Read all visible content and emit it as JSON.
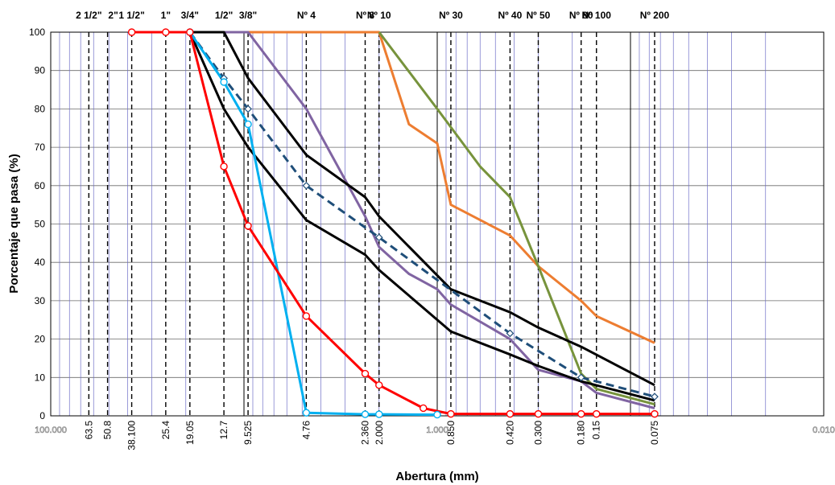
{
  "chart_data": {
    "type": "line",
    "xscale": "log",
    "x_reversed": true,
    "xlim": [
      100,
      0.01
    ],
    "ylim": [
      0,
      100
    ],
    "grid": true,
    "xlabel": "Abertura (mm)",
    "ylabel": "Porcentaje que pasa (%)",
    "y_ticks": [
      "0",
      "10",
      "20",
      "30",
      "40",
      "50",
      "60",
      "70",
      "80",
      "90",
      "100"
    ],
    "x_edge_labels": [
      {
        "value": 100,
        "label": "100.000"
      },
      {
        "value": 1,
        "label": "1.000"
      },
      {
        "value": 0.01,
        "label": "0.010"
      }
    ],
    "sieve_sizes": [
      {
        "mm": 63.5,
        "label": "63.5",
        "sieve": "2 1/2\""
      },
      {
        "mm": 50.8,
        "label": "50.8",
        "sieve": "2\""
      },
      {
        "mm": 38.1,
        "label": "38.100",
        "sieve": "1 1/2\""
      },
      {
        "mm": 25.4,
        "label": "25.4",
        "sieve": "1\""
      },
      {
        "mm": 19.05,
        "label": "19.05",
        "sieve": "3/4\""
      },
      {
        "mm": 12.7,
        "label": "12.7",
        "sieve": "1/2\""
      },
      {
        "mm": 9.525,
        "label": "9.525",
        "sieve": "3/8\""
      },
      {
        "mm": 4.76,
        "label": "4.76",
        "sieve": "Nº 4"
      },
      {
        "mm": 2.36,
        "label": "2.360",
        "sieve": "Nº 8"
      },
      {
        "mm": 2.0,
        "label": "2.000",
        "sieve": "Nº 10"
      },
      {
        "mm": 0.85,
        "label": "0.850",
        "sieve": "Nº 30"
      },
      {
        "mm": 0.42,
        "label": "0.420",
        "sieve": "Nº 40"
      },
      {
        "mm": 0.3,
        "label": "0.300",
        "sieve": "Nº 50"
      },
      {
        "mm": 0.18,
        "label": "0.180",
        "sieve": "Nº 80"
      },
      {
        "mm": 0.15,
        "label": "0.15",
        "sieve": "Nº 100"
      },
      {
        "mm": 0.075,
        "label": "0.075",
        "sieve": "Nº 200"
      }
    ],
    "series": [
      {
        "color": "#ed7d31",
        "marker": "none",
        "dash": false,
        "points": [
          [
            38.1,
            100
          ],
          [
            25.4,
            100
          ],
          [
            19.05,
            100
          ],
          [
            12.7,
            100
          ],
          [
            9.525,
            100
          ],
          [
            4.76,
            100
          ],
          [
            2.36,
            100
          ],
          [
            2.0,
            100
          ],
          [
            1.4,
            76
          ],
          [
            1.0,
            71
          ],
          [
            0.85,
            55
          ],
          [
            0.42,
            47
          ],
          [
            0.3,
            39
          ],
          [
            0.18,
            30
          ],
          [
            0.15,
            26
          ],
          [
            0.075,
            19
          ]
        ]
      },
      {
        "color": "#77933c",
        "marker": "none",
        "dash": false,
        "points": [
          [
            2.0,
            100
          ],
          [
            1.0,
            80
          ],
          [
            0.6,
            65
          ],
          [
            0.42,
            57
          ],
          [
            0.3,
            39
          ],
          [
            0.18,
            11
          ],
          [
            0.15,
            7
          ],
          [
            0.075,
            3
          ]
        ]
      },
      {
        "color": "#8064a2",
        "marker": "none",
        "dash": false,
        "points": [
          [
            19.05,
            100
          ],
          [
            12.7,
            100
          ],
          [
            9.525,
            100
          ],
          [
            4.76,
            80
          ],
          [
            2.36,
            52
          ],
          [
            2.0,
            44
          ],
          [
            1.4,
            37
          ],
          [
            1.0,
            33
          ],
          [
            0.85,
            29
          ],
          [
            0.42,
            20
          ],
          [
            0.3,
            12
          ],
          [
            0.18,
            9
          ],
          [
            0.15,
            6
          ],
          [
            0.075,
            2
          ]
        ]
      },
      {
        "color": "#000000",
        "marker": "none",
        "dash": false,
        "points": [
          [
            19.05,
            100
          ],
          [
            12.7,
            100
          ],
          [
            9.525,
            88
          ],
          [
            4.76,
            68
          ],
          [
            2.36,
            57
          ],
          [
            2.0,
            52
          ],
          [
            0.85,
            33
          ],
          [
            0.42,
            27
          ],
          [
            0.3,
            23
          ],
          [
            0.18,
            18
          ],
          [
            0.075,
            8
          ]
        ]
      },
      {
        "color": "#000000",
        "marker": "none",
        "dash": false,
        "points": [
          [
            19.05,
            100
          ],
          [
            12.7,
            80
          ],
          [
            9.525,
            70
          ],
          [
            4.76,
            51
          ],
          [
            2.36,
            42
          ],
          [
            2.0,
            38
          ],
          [
            0.85,
            22
          ],
          [
            0.42,
            16
          ],
          [
            0.3,
            13
          ],
          [
            0.18,
            9
          ],
          [
            0.075,
            4
          ]
        ]
      },
      {
        "color": "#1f4e79",
        "marker": "diamond",
        "dash": true,
        "points": [
          [
            19.05,
            100
          ],
          [
            12.7,
            88
          ],
          [
            9.525,
            80
          ],
          [
            4.76,
            60
          ],
          [
            2.0,
            46.5
          ],
          [
            0.42,
            21.5
          ],
          [
            0.18,
            10
          ],
          [
            0.075,
            5
          ]
        ]
      },
      {
        "color": "#00b0f0",
        "marker": "circle",
        "dash": false,
        "points": [
          [
            19.05,
            100
          ],
          [
            12.7,
            87
          ],
          [
            9.525,
            76
          ],
          [
            4.76,
            0.8
          ],
          [
            2.36,
            0.4
          ],
          [
            2.0,
            0.4
          ],
          [
            1.0,
            0.3
          ]
        ]
      },
      {
        "color": "#ff0000",
        "marker": "circle",
        "dash": false,
        "points": [
          [
            38.1,
            100
          ],
          [
            25.4,
            100
          ],
          [
            19.05,
            100
          ],
          [
            12.7,
            65
          ],
          [
            9.525,
            49.5
          ],
          [
            4.76,
            26
          ],
          [
            2.36,
            11
          ],
          [
            2.0,
            8
          ],
          [
            1.18,
            2
          ],
          [
            0.85,
            0.5
          ],
          [
            0.42,
            0.5
          ],
          [
            0.3,
            0.5
          ],
          [
            0.18,
            0.5
          ],
          [
            0.15,
            0.5
          ],
          [
            0.075,
            0.5
          ]
        ]
      }
    ]
  }
}
